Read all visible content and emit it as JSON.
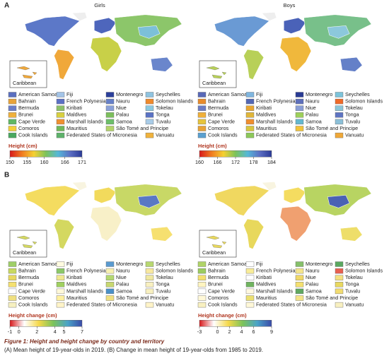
{
  "countries": [
    [
      "American Samoa",
      "Fiji",
      "Montenegro",
      "Seychelles"
    ],
    [
      "Bahrain",
      "French Polynesia",
      "Nauru",
      "Solomon Islands"
    ],
    [
      "Bermuda",
      "Kiribati",
      "Niue",
      "Tokelau"
    ],
    [
      "Brunei",
      "Maldives",
      "Palau",
      "Tonga"
    ],
    [
      "Cape Verde",
      "Marshall Islands",
      "Samoa",
      "Tuvalu"
    ],
    [
      "Comoros",
      "Mauritius",
      "São Tomé and Principe"
    ],
    [
      "Cook Islands",
      "Federated States of Micronesia",
      "Vanuatu"
    ]
  ],
  "panels": [
    {
      "label": "A",
      "maps": [
        {
          "title": "Girls",
          "inset": "Caribbean",
          "colors": [
            [
              "#5a6fc0",
              "#a3c4e8",
              "#2b3f9b",
              "#8fc3e0"
            ],
            [
              "#e8a33a",
              "#5b6fc4",
              "#6680c8",
              "#f08a2c"
            ],
            [
              "#6a7dc8",
              "#8cc06a",
              "#8aa0d8",
              "#8cc9e0"
            ],
            [
              "#f0b13c",
              "#d8d040",
              "#7cbf5c",
              "#5a72c4"
            ],
            [
              "#5fb864",
              "#f09030",
              "#6dbf6a",
              "#a9cce8"
            ],
            [
              "#f4d03a",
              "#70b85a",
              "#b4d46a"
            ],
            [
              "#4aa860",
              "#5db26a",
              "#f0b23c"
            ]
          ],
          "colorbar": {
            "title": "Height (cm)",
            "lim": [
              150,
              171
            ],
            "ticks": [
              150,
              155,
              160,
              166,
              171
            ],
            "colors": [
              "#d7191c",
              "#f07c22",
              "#f5d033",
              "#7cc35a",
              "#55b8d8",
              "#5c6fc4",
              "#2b3a96"
            ]
          }
        },
        {
          "title": "Boys",
          "inset": "Caribbean",
          "colors": [
            [
              "#5868b8",
              "#7fb6e0",
              "#283a94",
              "#7cc3da"
            ],
            [
              "#e88c2c",
              "#5266b4",
              "#5e70bc",
              "#f06a28"
            ],
            [
              "#6c7cc4",
              "#e8a632",
              "#8a9ed6",
              "#8cc6d8"
            ],
            [
              "#f0b03a",
              "#e0b63a",
              "#9ed05a",
              "#5e74c2"
            ],
            [
              "#e6c43c",
              "#f08e2e",
              "#64b8d0",
              "#8cc0d8"
            ],
            [
              "#e8a236",
              "#d8c640",
              "#f2c43a"
            ],
            [
              "#5aa0d0",
              "#8cc85a",
              "#f0a838"
            ]
          ],
          "colorbar": {
            "title": "Height (cm)",
            "lim": [
              160,
              184
            ],
            "ticks": [
              160,
              166,
              172,
              178,
              184
            ],
            "colors": [
              "#d7191c",
              "#f07c22",
              "#f5d033",
              "#7cc35a",
              "#55b8d8",
              "#5c6fc4",
              "#2b3a96"
            ]
          }
        }
      ]
    },
    {
      "label": "B",
      "maps": [
        {
          "inset": "Caribbean",
          "colors": [
            [
              "#9fcf68",
              "#fffbe0",
              "#5a9ad0",
              "#b8d870"
            ],
            [
              "#c8d860",
              "#8cc868",
              "#f8f0b0",
              "#f8e8a0"
            ],
            [
              "#e8d860",
              "#f0e890",
              "#b4d870",
              "#f0e8a0"
            ],
            [
              "#f4e070",
              "#a0d060",
              "#c8d870",
              "#f8f0c0"
            ],
            [
              "#ffffff",
              "#fff8d8",
              "#4a90c8",
              "#f8f0c0"
            ],
            [
              "#f0e080",
              "#fff0a0",
              "#f0e080"
            ],
            [
              "#f6f0c0",
              "#fff4c8",
              "#fff4c8"
            ]
          ],
          "colorbar": {
            "title": "Height change (cm)",
            "lim": [
              -1,
              7
            ],
            "ticks": [
              -1,
              0,
              2,
              4,
              5,
              7
            ],
            "colors": [
              "#d7191c",
              "#ffffff",
              "#f5d84a",
              "#7cc35a",
              "#4aa3c8",
              "#3b4ba8"
            ]
          }
        },
        {
          "inset": "Caribbean",
          "colors": [
            [
              "#b0d468",
              "#ffffff",
              "#86c06a",
              "#5aa860"
            ],
            [
              "#9ccc60",
              "#f8ec98",
              "#f4e48c",
              "#e86050"
            ],
            [
              "#f4e070",
              "#ffffff",
              "#f0d868",
              "#f4e080"
            ],
            [
              "#fff4c0",
              "#70b460",
              "#f4e070",
              "#e8d860"
            ],
            [
              "#ffffff",
              "#fff8e0",
              "#60a860",
              "#f2dc70"
            ],
            [
              "#fff8d8",
              "#ece070",
              "#f4e488"
            ],
            [
              "#f8f0c0",
              "#fff8d8",
              "#f8f0c0"
            ]
          ],
          "colorbar": {
            "title": "Height change (cm)",
            "lim": [
              -3,
              9
            ],
            "ticks": [
              -3,
              0,
              2,
              4,
              6,
              9
            ],
            "colors": [
              "#d7191c",
              "#ffffff",
              "#f5d84a",
              "#7cc35a",
              "#4aa3c8",
              "#3b4ba8"
            ]
          }
        }
      ]
    }
  ],
  "caption": {
    "title": "Figure 1: Height and height change by country and territory",
    "text": "(A) Mean height of 19-year-olds in 2019. (B) Change in mean height of 19-year-olds from 1985 to 2019."
  }
}
